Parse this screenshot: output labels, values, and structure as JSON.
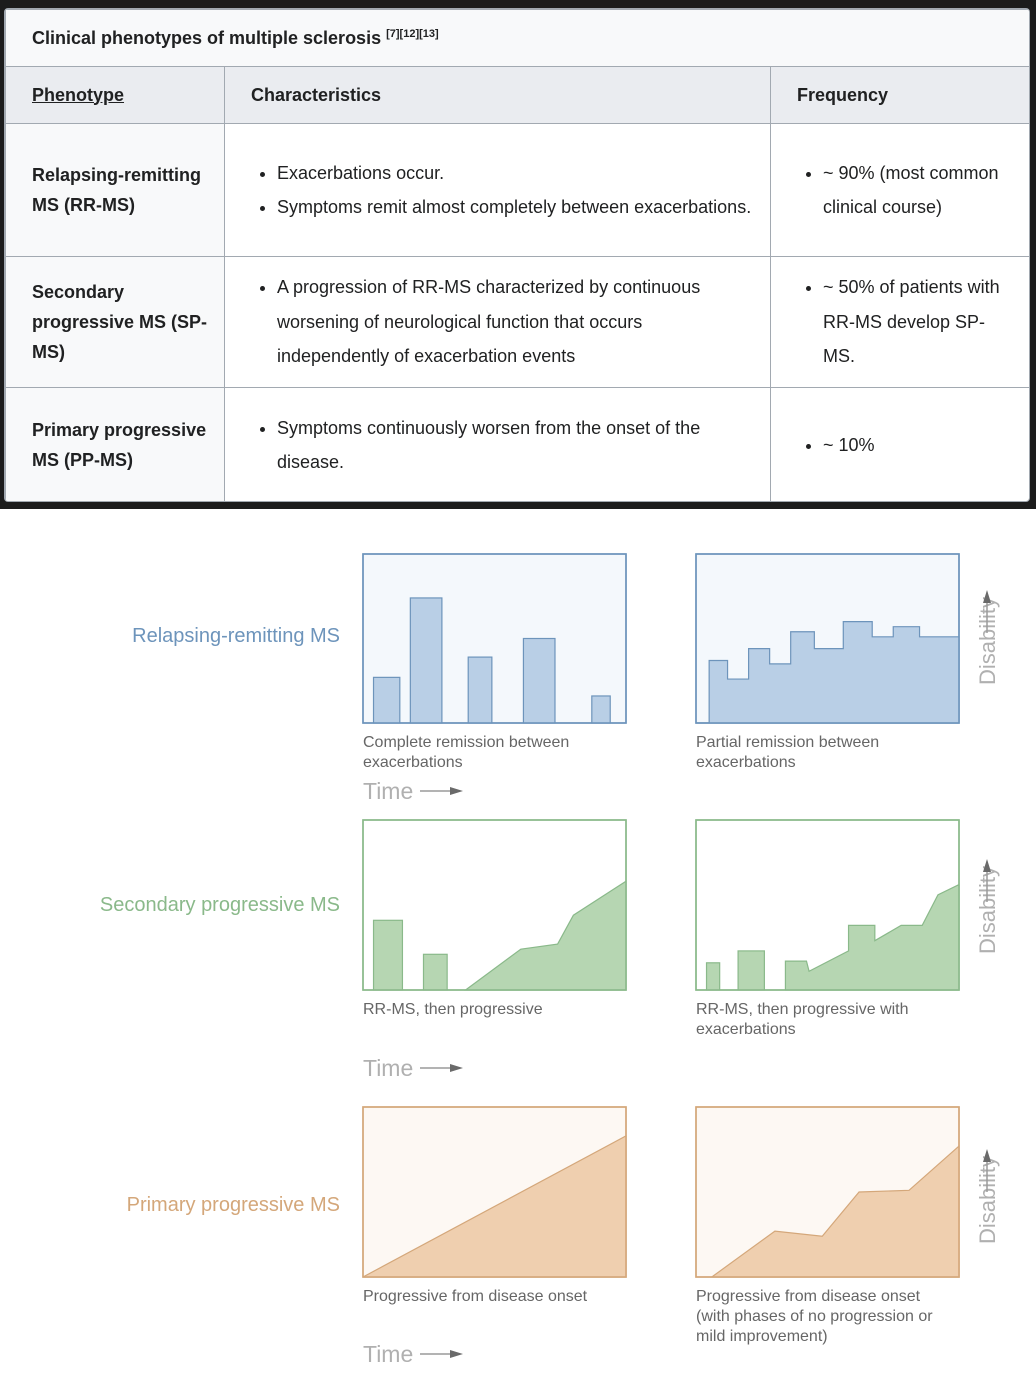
{
  "table": {
    "caption": "Clinical phenotypes of multiple sclerosis",
    "caption_refs": "[7][12][13]",
    "headers": [
      "Phenotype",
      "Characteristics",
      "Frequency"
    ],
    "rows": [
      {
        "phenotype": "Relapsing-remitting MS (RR-MS)",
        "characteristics": [
          "Exacerbations occur.",
          "Symptoms remit almost completely between exacerbations."
        ],
        "frequency": [
          "~ 90% (most common clinical course)"
        ]
      },
      {
        "phenotype": "Secondary progressive MS (SP-MS)",
        "characteristics": [
          "A progression of RR-MS characterized by continuous worsening of neurological function that occurs independently of exacerbation events"
        ],
        "frequency": [
          "~ 50% of patients with RR-MS develop SP-MS."
        ]
      },
      {
        "phenotype": "Primary progressive MS (PP-MS)",
        "characteristics": [
          "Symptoms continuously worsen from the onset of the disease."
        ],
        "frequency": [
          "~ 10%"
        ]
      }
    ]
  },
  "diagram": {
    "colors": {
      "rr": "#6d94bb",
      "rr_fill": "#b9cfe6",
      "rr_bg": "#f4f8fc",
      "sp": "#8ab98a",
      "sp_fill": "#b6d6b2",
      "sp_bg": "#ffffff",
      "pp": "#d4a77a",
      "pp_fill": "#efcfaf",
      "pp_bg": "#fdf8f3",
      "axis_text": "#b0b0b0",
      "caption_text": "#666666"
    },
    "axis": {
      "time": "Time",
      "disability": "Disability"
    },
    "rows": [
      {
        "key": "rr",
        "label": "Relapsing-remitting MS",
        "panels": [
          {
            "caption": [
              "Complete remission between",
              "exacerbations"
            ],
            "type": "bars",
            "bars": [
              [
                0.04,
                0.14,
                0.27
              ],
              [
                0.18,
                0.3,
                0.74
              ],
              [
                0.4,
                0.49,
                0.39
              ],
              [
                0.61,
                0.73,
                0.5
              ],
              [
                0.87,
                0.94,
                0.16
              ]
            ]
          },
          {
            "caption": [
              "Partial remission between",
              "exacerbations"
            ],
            "type": "step",
            "profile": [
              [
                0,
                0
              ],
              [
                0.05,
                0
              ],
              [
                0.05,
                0.37
              ],
              [
                0.12,
                0.37
              ],
              [
                0.12,
                0.26
              ],
              [
                0.2,
                0.26
              ],
              [
                0.2,
                0.44
              ],
              [
                0.28,
                0.44
              ],
              [
                0.28,
                0.35
              ],
              [
                0.36,
                0.35
              ],
              [
                0.36,
                0.54
              ],
              [
                0.45,
                0.54
              ],
              [
                0.45,
                0.44
              ],
              [
                0.56,
                0.44
              ],
              [
                0.56,
                0.6
              ],
              [
                0.67,
                0.6
              ],
              [
                0.67,
                0.51
              ],
              [
                0.75,
                0.51
              ],
              [
                0.75,
                0.57
              ],
              [
                0.85,
                0.57
              ],
              [
                0.85,
                0.51
              ],
              [
                1,
                0.51
              ],
              [
                1,
                0
              ]
            ]
          }
        ]
      },
      {
        "key": "sp",
        "label": "Secondary progressive MS",
        "panels": [
          {
            "caption": [
              "RR-MS, then progressive"
            ],
            "type": "bars+area",
            "bars": [
              [
                0.04,
                0.15,
                0.41
              ],
              [
                0.23,
                0.32,
                0.21
              ]
            ],
            "profile": [
              [
                0.39,
                0
              ],
              [
                0.6,
                0.24
              ],
              [
                0.74,
                0.27
              ],
              [
                0.8,
                0.44
              ],
              [
                1,
                0.64
              ],
              [
                1,
                0
              ]
            ]
          },
          {
            "caption": [
              "RR-MS, then progressive with",
              "exacerbations"
            ],
            "type": "bars+area",
            "bars": [
              [
                0.04,
                0.09,
                0.16
              ],
              [
                0.16,
                0.26,
                0.23
              ]
            ],
            "profile": [
              [
                0.34,
                0
              ],
              [
                0.34,
                0.17
              ],
              [
                0.42,
                0.17
              ],
              [
                0.43,
                0.11
              ],
              [
                0.58,
                0.23
              ],
              [
                0.58,
                0.38
              ],
              [
                0.68,
                0.38
              ],
              [
                0.68,
                0.29
              ],
              [
                0.78,
                0.38
              ],
              [
                0.86,
                0.38
              ],
              [
                0.92,
                0.56
              ],
              [
                1,
                0.62
              ],
              [
                1,
                0
              ]
            ]
          }
        ]
      },
      {
        "key": "pp",
        "label": "Primary progressive MS",
        "panels": [
          {
            "caption": [
              "Progressive from disease onset"
            ],
            "type": "area",
            "profile": [
              [
                0,
                0
              ],
              [
                1,
                0.83
              ],
              [
                1,
                0
              ]
            ]
          },
          {
            "caption": [
              "Progressive from disease onset",
              "(with phases of no progression or",
              "mild improvement)"
            ],
            "type": "area",
            "profile": [
              [
                0.06,
                0
              ],
              [
                0.3,
                0.27
              ],
              [
                0.48,
                0.24
              ],
              [
                0.62,
                0.5
              ],
              [
                0.81,
                0.51
              ],
              [
                1,
                0.77
              ],
              [
                1,
                0
              ]
            ]
          }
        ]
      }
    ]
  }
}
